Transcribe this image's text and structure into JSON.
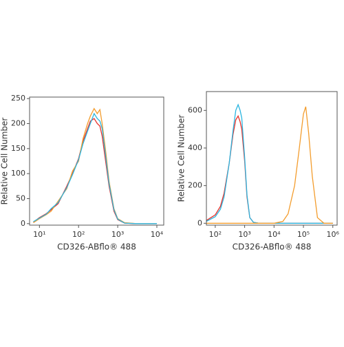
{
  "chart_data": [
    {
      "type": "line",
      "xlabel": "CD326-ABflo® 488",
      "ylabel": "Relative Cell Number",
      "xscale": "log",
      "xlim": [
        5.6,
        15000
      ],
      "ylim": [
        -3,
        253
      ],
      "xticks": [
        {
          "value": 10,
          "label": "10¹"
        },
        {
          "value": 100,
          "label": "10²"
        },
        {
          "value": 1000,
          "label": "10³"
        },
        {
          "value": 10000,
          "label": "10⁴"
        }
      ],
      "yticks": [
        0,
        50,
        100,
        150,
        200,
        250
      ],
      "series": [
        {
          "color": "#e8312a",
          "x": [
            7,
            10,
            15,
            20,
            30,
            50,
            70,
            100,
            130,
            170,
            200,
            250,
            300,
            350,
            400,
            500,
            600,
            800,
            1000,
            1500,
            3000,
            10000
          ],
          "values": [
            3,
            12,
            20,
            28,
            40,
            75,
            100,
            130,
            165,
            190,
            205,
            210,
            200,
            195,
            175,
            120,
            75,
            25,
            8,
            1,
            0,
            0
          ]
        },
        {
          "color": "#f39c2c",
          "x": [
            7,
            10,
            15,
            20,
            30,
            50,
            70,
            100,
            130,
            170,
            200,
            250,
            300,
            350,
            400,
            500,
            600,
            800,
            1000,
            1500,
            3000,
            10000
          ],
          "values": [
            2,
            10,
            18,
            25,
            45,
            70,
            105,
            125,
            170,
            200,
            215,
            230,
            220,
            228,
            200,
            140,
            85,
            30,
            10,
            2,
            0,
            0
          ]
        },
        {
          "color": "#29b5e0",
          "x": [
            7,
            10,
            15,
            20,
            30,
            50,
            70,
            100,
            130,
            170,
            200,
            250,
            300,
            350,
            400,
            500,
            600,
            800,
            1000,
            1500,
            3000,
            10000
          ],
          "values": [
            4,
            11,
            19,
            30,
            42,
            72,
            98,
            128,
            160,
            185,
            200,
            220,
            210,
            205,
            190,
            130,
            80,
            28,
            9,
            1,
            0,
            0
          ]
        }
      ]
    },
    {
      "type": "line",
      "xlabel": "CD326-ABflo® 488",
      "ylabel": "Relative Cell Number",
      "xscale": "log",
      "xlim": [
        50,
        1400000
      ],
      "ylim": [
        -10,
        700
      ],
      "xticks": [
        {
          "value": 100,
          "label": "10²"
        },
        {
          "value": 1000,
          "label": "10³"
        },
        {
          "value": 10000,
          "label": "10⁴"
        },
        {
          "value": 100000,
          "label": "10⁵"
        },
        {
          "value": 1000000,
          "label": "10⁶"
        }
      ],
      "yticks": [
        0,
        200,
        400,
        600
      ],
      "series": [
        {
          "color": "#e8312a",
          "x": [
            50,
            100,
            150,
            200,
            300,
            400,
            500,
            600,
            700,
            800,
            1000,
            1200,
            1500,
            2000,
            3000,
            10000,
            1000000
          ],
          "values": [
            15,
            45,
            90,
            160,
            320,
            470,
            550,
            570,
            540,
            500,
            330,
            140,
            30,
            5,
            0,
            0,
            0
          ]
        },
        {
          "color": "#29b5e0",
          "x": [
            50,
            100,
            150,
            200,
            300,
            400,
            500,
            600,
            700,
            800,
            1000,
            1200,
            1500,
            2000,
            3000,
            10000,
            1000000
          ],
          "values": [
            10,
            35,
            75,
            140,
            320,
            490,
            600,
            630,
            600,
            560,
            350,
            150,
            30,
            5,
            0,
            0,
            0
          ]
        },
        {
          "color": "#f39c2c",
          "x": [
            50,
            10000,
            20000,
            30000,
            50000,
            70000,
            100000,
            120000,
            150000,
            200000,
            300000,
            500000,
            1000000
          ],
          "values": [
            0,
            0,
            10,
            50,
            200,
            380,
            580,
            620,
            480,
            250,
            30,
            0,
            0
          ]
        }
      ]
    }
  ]
}
